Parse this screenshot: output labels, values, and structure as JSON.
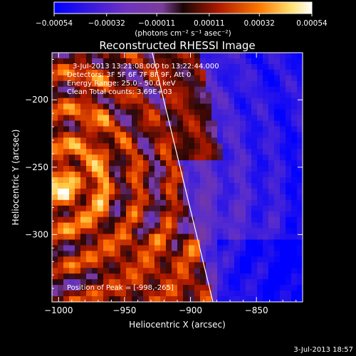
{
  "chart_data": {
    "type": "heatmap",
    "title": "Reconstructed RHESSI Image",
    "xlabel": "Heliocentric X (arcsec)",
    "ylabel": "Heliocentric Y (arcsec)",
    "xlim": [
      -1005,
      -815
    ],
    "ylim": [
      -350,
      -165
    ],
    "xticks": [
      -1000,
      -950,
      -900,
      -850
    ],
    "yticks": [
      -200,
      -250,
      -300
    ],
    "xtick_labels": [
      "−1000",
      "−950",
      "−900",
      "−850"
    ],
    "ytick_labels": [
      "−200",
      "−250",
      "−300"
    ],
    "colorbar": {
      "min": -0.00054,
      "max": 0.00054,
      "ticks": [
        -0.00054,
        -0.00032,
        -0.00011,
        0.00011,
        0.00032,
        0.00054
      ],
      "tick_labels": [
        "−0.00054",
        "−0.00032",
        "−0.00011",
        "0.00011",
        "0.00032",
        "0.00054"
      ],
      "unit_label": "(photons cm⁻² s⁻¹ asec⁻²)"
    },
    "limb_line": [
      [
        -929,
        -165
      ],
      [
        -883,
        -350
      ]
    ],
    "annotations": {
      "time": "3-Jul-2013 13:21:08.000 to 13:22:44.000",
      "detectors": "Detectors: 3F 5F 6F 7F 8F 9F, Att 0",
      "energy": "Energy Range: 25.0 - 50.0 keV",
      "clean": "Clean    Total counts: 3.69E+03",
      "peak": "Position of Peak = [-998,-265]"
    },
    "peak_position": [
      -998,
      -265
    ],
    "footer_date": "3-Jul-2013 18:57"
  },
  "colors": {
    "background": "#000000",
    "axes": "#ffffff",
    "colormap": [
      "#0000ff",
      "#5a2dcc",
      "#7a3aa0",
      "#2a0606",
      "#b01a00",
      "#ff6a00",
      "#ffd04a",
      "#ffffff"
    ]
  }
}
